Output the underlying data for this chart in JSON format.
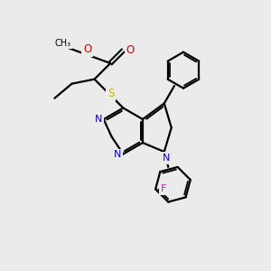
{
  "bg_color": "#ebebeb",
  "atom_colors": {
    "C": "#000000",
    "N": "#0000ee",
    "O": "#dd0000",
    "S": "#bbbb00",
    "F": "#ee00ee",
    "H": "#000000"
  },
  "line_color": "#000000",
  "line_width": 1.6,
  "figsize": [
    3.0,
    3.0
  ],
  "dpi": 100
}
